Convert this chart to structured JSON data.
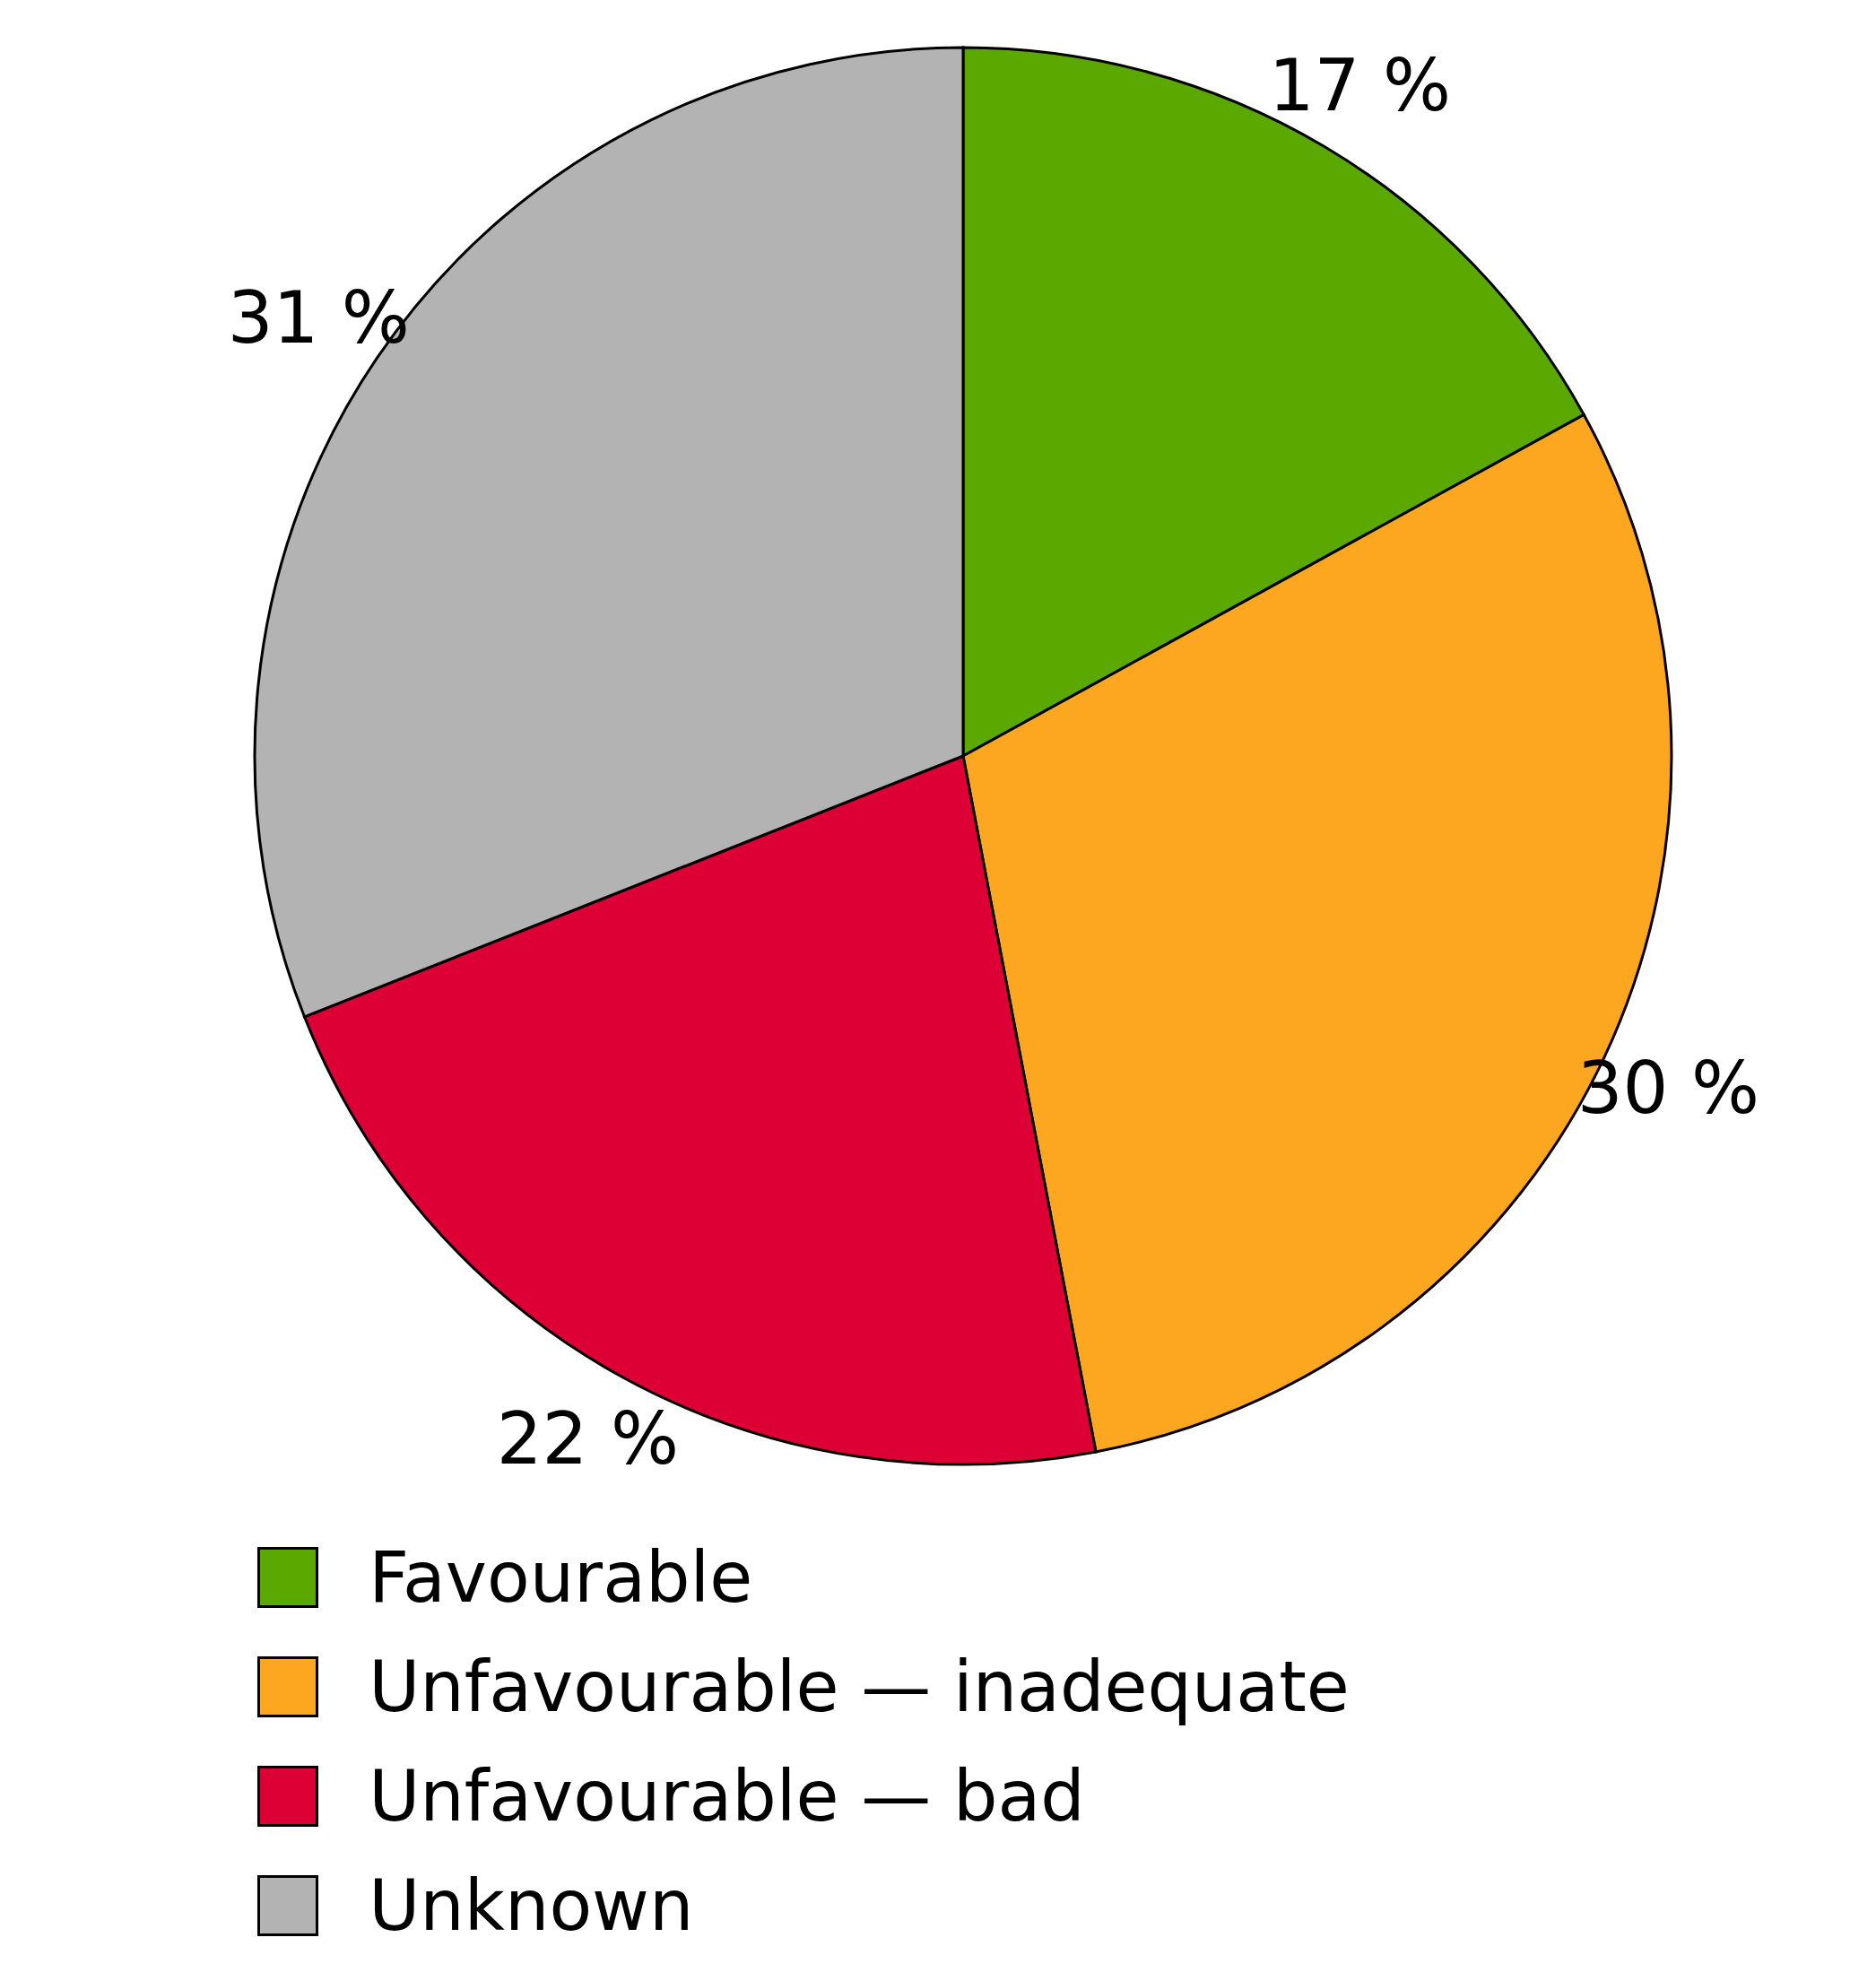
{
  "chart_data": {
    "type": "pie",
    "categories": [
      "Favourable",
      "Unfavourable — inadequate",
      "Unfavourable — bad",
      "Unknown"
    ],
    "values": [
      17,
      30,
      22,
      31
    ],
    "colors": [
      "#5ba800",
      "#fda61f",
      "#dc0035",
      "#b3b3b3"
    ],
    "value_labels": [
      "17 %",
      "30 %",
      "22 %",
      "31 %"
    ],
    "legend": "bottom"
  }
}
